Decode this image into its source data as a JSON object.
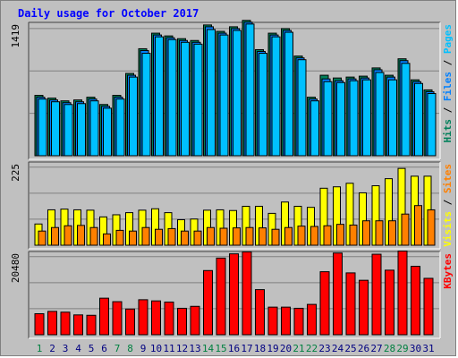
{
  "title": "Daily usage for October 2017",
  "colors": {
    "pages": "#00c0ff",
    "files": "#0080ff",
    "hits": "#00805a",
    "sites": "#ff8000",
    "visits": "#ffff00",
    "kbytes": "#ff0000",
    "panel_bg": "#c0c0c0",
    "grid": "#808080",
    "title": "#0000ff",
    "weekend_day": "#008040",
    "weekday_day": "#000080"
  },
  "chart_data": [
    {
      "type": "bar",
      "panel": "hits-files-pages",
      "ymax_label": "1419",
      "ylim": [
        0,
        1419
      ],
      "legend": [
        {
          "label": "Pages",
          "color": "#00c0ff"
        },
        {
          "label": "Files",
          "color": "#0080ff"
        },
        {
          "label": "Hits",
          "color": "#00805a"
        }
      ],
      "separator": " / ",
      "categories": [
        "1",
        "2",
        "3",
        "4",
        "5",
        "6",
        "7",
        "8",
        "9",
        "10",
        "11",
        "12",
        "13",
        "14",
        "15",
        "16",
        "17",
        "18",
        "19",
        "20",
        "21",
        "22",
        "23",
        "24",
        "25",
        "26",
        "27",
        "28",
        "29",
        "30",
        "31"
      ],
      "series": [
        {
          "name": "Hits",
          "values": [
            660,
            630,
            600,
            610,
            640,
            560,
            660,
            900,
            1170,
            1340,
            1310,
            1280,
            1260,
            1430,
            1360,
            1410,
            1480,
            1160,
            1340,
            1390,
            1090,
            640,
            880,
            850,
            860,
            870,
            960,
            880,
            1060,
            830,
            720
          ]
        },
        {
          "name": "Files",
          "values": [
            640,
            610,
            580,
            590,
            620,
            540,
            640,
            880,
            1150,
            1320,
            1290,
            1260,
            1240,
            1410,
            1340,
            1390,
            1460,
            1140,
            1320,
            1370,
            1070,
            620,
            840,
            820,
            840,
            850,
            940,
            860,
            1040,
            810,
            700
          ]
        },
        {
          "name": "Pages",
          "values": [
            620,
            590,
            560,
            570,
            600,
            520,
            620,
            860,
            1120,
            1300,
            1270,
            1240,
            1220,
            1380,
            1320,
            1370,
            1440,
            1120,
            1300,
            1350,
            1050,
            600,
            810,
            800,
            820,
            830,
            910,
            830,
            1010,
            790,
            680
          ]
        }
      ]
    },
    {
      "type": "bar",
      "panel": "visits-sites",
      "ymax_label": "225",
      "ylim": [
        0,
        225
      ],
      "legend": [
        {
          "label": "Sites",
          "color": "#ff8000"
        },
        {
          "label": "Visits",
          "color": "#ffff00"
        }
      ],
      "separator": " / ",
      "categories": [
        "1",
        "2",
        "3",
        "4",
        "5",
        "6",
        "7",
        "8",
        "9",
        "10",
        "11",
        "12",
        "13",
        "14",
        "15",
        "16",
        "17",
        "18",
        "19",
        "20",
        "21",
        "22",
        "23",
        "24",
        "25",
        "26",
        "27",
        "28",
        "29",
        "30",
        "31"
      ],
      "series": [
        {
          "name": "Visits",
          "values": [
            60,
            100,
            102,
            100,
            99,
            80,
            86,
            92,
            99,
            103,
            92,
            72,
            74,
            99,
            100,
            98,
            110,
            110,
            90,
            122,
            110,
            107,
            161,
            165,
            175,
            148,
            168,
            188,
            217,
            195,
            195
          ]
        },
        {
          "name": "Sites",
          "values": [
            40,
            50,
            55,
            56,
            50,
            32,
            42,
            40,
            50,
            45,
            47,
            40,
            40,
            50,
            48,
            49,
            50,
            49,
            45,
            50,
            54,
            53,
            55,
            59,
            57,
            69,
            69,
            69,
            88,
            112,
            100
          ]
        }
      ]
    },
    {
      "type": "bar",
      "panel": "kbytes",
      "ymax_label": "20480",
      "ylim": [
        0,
        20480
      ],
      "legend": [
        {
          "label": "KBytes",
          "color": "#ff0000"
        }
      ],
      "categories": [
        "1",
        "2",
        "3",
        "4",
        "5",
        "6",
        "7",
        "8",
        "9",
        "10",
        "11",
        "12",
        "13",
        "14",
        "15",
        "16",
        "17",
        "18",
        "19",
        "20",
        "21",
        "22",
        "23",
        "24",
        "25",
        "26",
        "27",
        "28",
        "29",
        "30",
        "31"
      ],
      "series": [
        {
          "name": "KBytes",
          "values": [
            5400,
            6000,
            5800,
            5100,
            5000,
            9400,
            8500,
            6600,
            9000,
            8700,
            8400,
            6800,
            7300,
            16500,
            19700,
            20800,
            21300,
            11600,
            7100,
            7100,
            6800,
            7800,
            16200,
            21000,
            15900,
            14000,
            20700,
            16600,
            21500,
            17600,
            14500
          ]
        }
      ],
      "weekend_days": [
        "1",
        "7",
        "8",
        "14",
        "15",
        "21",
        "22",
        "28",
        "29"
      ]
    }
  ]
}
